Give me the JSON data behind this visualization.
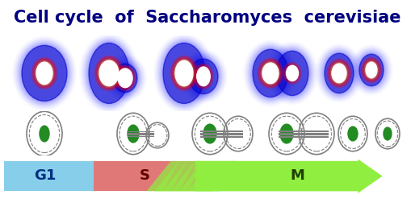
{
  "title": "Cell cycle  of  Saccharomyces  cerevisiae",
  "title_bg": "#FFFF99",
  "title_color": "#000080",
  "title_fontsize": 15,
  "micro_bg": "#000000",
  "phase_labels": [
    "G1",
    "S",
    "M"
  ],
  "phase_colors": [
    "#87CEEB",
    "#E07070",
    "#90EE40"
  ],
  "phase_arrow_color": "#90EE40",
  "fig_bg": "#FFFFFF",
  "dpi": 100,
  "figsize": [
    5.14,
    2.47
  ]
}
